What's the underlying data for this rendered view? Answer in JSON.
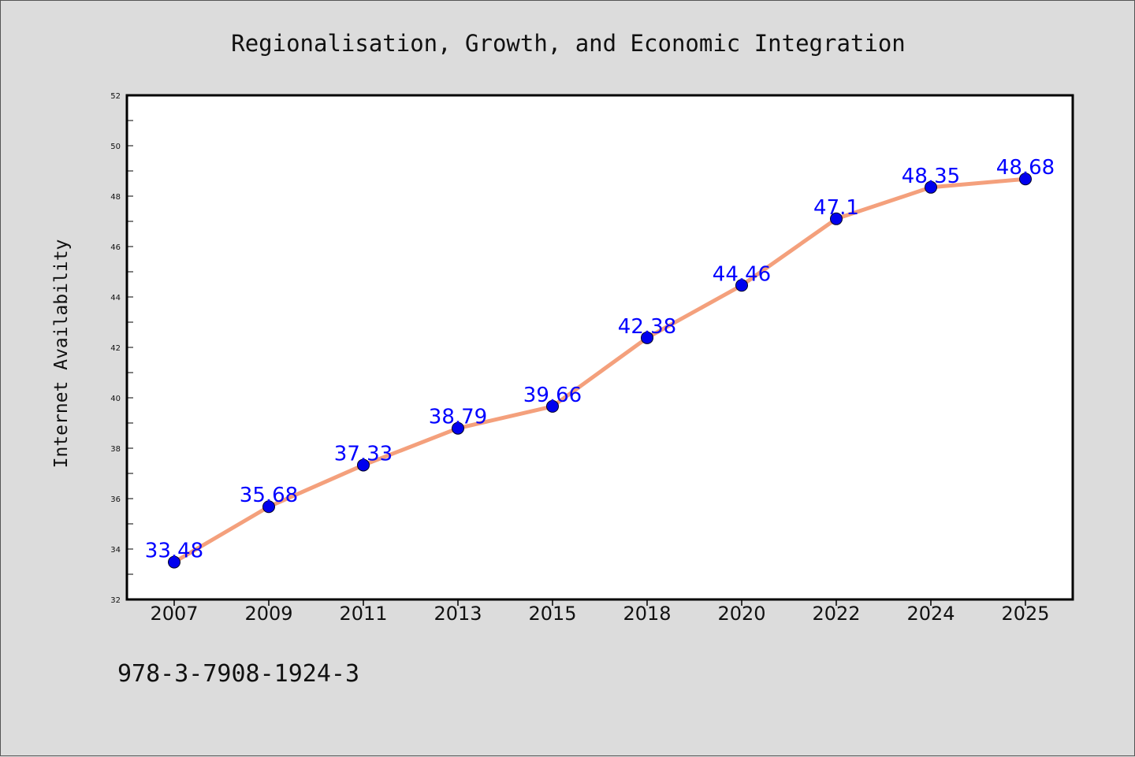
{
  "chart_data": {
    "type": "line",
    "title": "Regionalisation, Growth, and Economic Integration",
    "xlabel": "",
    "ylabel": "Internet Availability",
    "categories": [
      "2007",
      "2009",
      "2011",
      "2013",
      "2015",
      "2018",
      "2020",
      "2022",
      "2024",
      "2025"
    ],
    "series": [
      {
        "values": [
          33.48,
          35.68,
          37.33,
          38.79,
          39.66,
          42.38,
          44.46,
          47.1,
          48.35,
          48.68
        ],
        "labels": [
          "33.48",
          "35.68",
          "37.33",
          "38.79",
          "39.66",
          "42.38",
          "44.46",
          "47.1",
          "48.35",
          "48.68"
        ],
        "line_color": "#f4a07c",
        "marker_color": "#0000ee"
      }
    ],
    "ylim": [
      32,
      52
    ],
    "yticks": [
      "32",
      "34",
      "36",
      "38",
      "40",
      "42",
      "44",
      "46",
      "48",
      "50",
      "52"
    ],
    "grid": false,
    "label_color": "#0000ff"
  },
  "footer": {
    "isbn": "978-3-7908-1924-3"
  },
  "colors": {
    "background": "#dcdcdc",
    "plot_background": "#ffffff"
  }
}
